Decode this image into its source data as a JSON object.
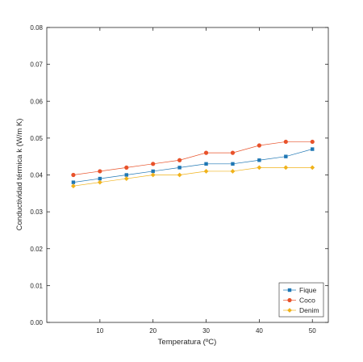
{
  "chart_data": {
    "type": "line",
    "title": "",
    "xlabel": "Temperatura (ºC)",
    "ylabel": "Conductividad térmica k (W/m  K)",
    "x": [
      5,
      10,
      15,
      20,
      25,
      30,
      35,
      40,
      45,
      50
    ],
    "xlim": [
      0,
      53
    ],
    "ylim": [
      0,
      0.08
    ],
    "xticks": [
      "10",
      "20",
      "30",
      "40",
      "50"
    ],
    "yticks": [
      "0.00",
      "0.01",
      "0.02",
      "0.03",
      "0.04",
      "0.05",
      "0.06",
      "0.07",
      "0.08"
    ],
    "grid": false,
    "legend_position": "bottom-right",
    "series": [
      {
        "name": "Fique",
        "color": "#1f77b4",
        "marker": "square",
        "values": [
          0.038,
          0.039,
          0.04,
          0.041,
          0.042,
          0.043,
          0.043,
          0.044,
          0.045,
          0.047
        ]
      },
      {
        "name": "Coco",
        "color": "#e8522a",
        "marker": "circle",
        "values": [
          0.04,
          0.041,
          0.042,
          0.043,
          0.044,
          0.046,
          0.046,
          0.048,
          0.049,
          0.049
        ]
      },
      {
        "name": "Denim",
        "color": "#f0b21a",
        "marker": "diamond",
        "values": [
          0.037,
          0.038,
          0.039,
          0.04,
          0.04,
          0.041,
          0.041,
          0.042,
          0.042,
          0.042
        ]
      }
    ]
  }
}
